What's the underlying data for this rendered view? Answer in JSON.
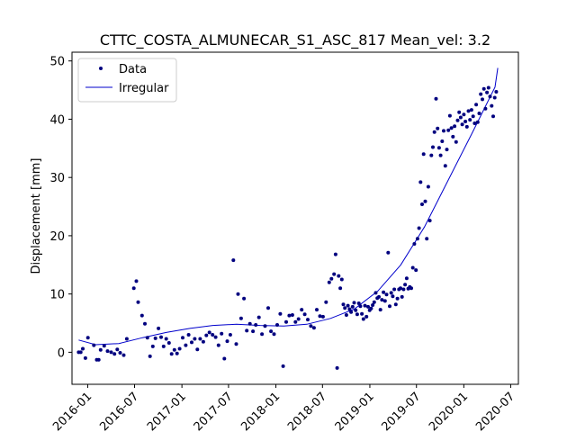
{
  "chart_data": {
    "type": "scatter",
    "title": "CTTC_COSTA_ALMUNECAR_S1_ASC_817     Mean_vel: 3.2",
    "xlabel": "",
    "ylabel": "Displacement [mm]",
    "x_type": "date",
    "xlim": [
      "2015-11-01",
      "2020-07-31"
    ],
    "ylim": [
      -5.5,
      51.5
    ],
    "xticks": [
      "2016-01",
      "2016-07",
      "2017-01",
      "2017-07",
      "2018-01",
      "2018-07",
      "2019-01",
      "2019-07",
      "2020-01",
      "2020-07"
    ],
    "yticks": [
      0,
      10,
      20,
      30,
      40,
      50
    ],
    "grid": false,
    "legend_position": "top-left",
    "colors": {
      "data": "#00007f",
      "fit": "#0000cc"
    },
    "series": [
      {
        "name": "Data",
        "kind": "points",
        "points": [
          [
            "2015-11-27",
            0.0
          ],
          [
            "2015-12-05",
            0.0
          ],
          [
            "2015-12-13",
            0.6
          ],
          [
            "2015-12-23",
            -1.0
          ],
          [
            "2016-01-02",
            2.5
          ],
          [
            "2016-01-25",
            1.2
          ],
          [
            "2016-02-05",
            -1.3
          ],
          [
            "2016-02-13",
            -1.3
          ],
          [
            "2016-02-20",
            0.4
          ],
          [
            "2016-03-05",
            1.1
          ],
          [
            "2016-03-18",
            0.2
          ],
          [
            "2016-04-01",
            0.0
          ],
          [
            "2016-04-14",
            -0.3
          ],
          [
            "2016-04-25",
            0.5
          ],
          [
            "2016-05-06",
            -0.1
          ],
          [
            "2016-05-20",
            -0.5
          ],
          [
            "2016-06-01",
            2.3
          ],
          [
            "2016-06-28",
            11.0
          ],
          [
            "2016-07-08",
            12.2
          ],
          [
            "2016-07-15",
            8.6
          ],
          [
            "2016-07-30",
            6.3
          ],
          [
            "2016-08-10",
            4.9
          ],
          [
            "2016-08-20",
            2.5
          ],
          [
            "2016-08-30",
            -0.7
          ],
          [
            "2016-09-10",
            1.0
          ],
          [
            "2016-09-20",
            2.4
          ],
          [
            "2016-10-02",
            4.1
          ],
          [
            "2016-10-12",
            2.6
          ],
          [
            "2016-10-22",
            1.0
          ],
          [
            "2016-11-01",
            2.3
          ],
          [
            "2016-11-12",
            1.6
          ],
          [
            "2016-11-22",
            -0.3
          ],
          [
            "2016-12-03",
            0.4
          ],
          [
            "2016-12-13",
            -0.2
          ],
          [
            "2016-12-23",
            0.6
          ],
          [
            "2017-01-04",
            2.5
          ],
          [
            "2017-01-16",
            1.2
          ],
          [
            "2017-01-27",
            3.0
          ],
          [
            "2017-02-08",
            1.7
          ],
          [
            "2017-02-20",
            2.3
          ],
          [
            "2017-03-02",
            0.5
          ],
          [
            "2017-03-13",
            2.3
          ],
          [
            "2017-03-25",
            1.8
          ],
          [
            "2017-04-06",
            2.9
          ],
          [
            "2017-04-18",
            3.4
          ],
          [
            "2017-04-30",
            3.0
          ],
          [
            "2017-05-12",
            2.6
          ],
          [
            "2017-05-23",
            1.2
          ],
          [
            "2017-06-04",
            3.2
          ],
          [
            "2017-06-15",
            -1.1
          ],
          [
            "2017-06-26",
            1.9
          ],
          [
            "2017-07-08",
            3.0
          ],
          [
            "2017-07-20",
            15.8
          ],
          [
            "2017-07-31",
            1.4
          ],
          [
            "2017-08-07",
            10.0
          ],
          [
            "2017-08-19",
            5.8
          ],
          [
            "2017-08-30",
            9.2
          ],
          [
            "2017-09-10",
            3.7
          ],
          [
            "2017-09-22",
            4.9
          ],
          [
            "2017-10-04",
            3.6
          ],
          [
            "2017-10-15",
            4.7
          ],
          [
            "2017-10-27",
            6.0
          ],
          [
            "2017-11-08",
            3.1
          ],
          [
            "2017-11-20",
            4.5
          ],
          [
            "2017-12-02",
            7.6
          ],
          [
            "2017-12-13",
            3.6
          ],
          [
            "2017-12-25",
            3.1
          ],
          [
            "2018-01-06",
            4.7
          ],
          [
            "2018-01-18",
            6.6
          ],
          [
            "2018-01-29",
            -2.4
          ],
          [
            "2018-02-10",
            5.2
          ],
          [
            "2018-02-22",
            6.3
          ],
          [
            "2018-03-06",
            6.4
          ],
          [
            "2018-03-18",
            5.2
          ],
          [
            "2018-03-30",
            5.7
          ],
          [
            "2018-04-11",
            7.3
          ],
          [
            "2018-04-23",
            6.5
          ],
          [
            "2018-05-05",
            5.6
          ],
          [
            "2018-05-17",
            4.5
          ],
          [
            "2018-05-29",
            4.2
          ],
          [
            "2018-06-09",
            7.3
          ],
          [
            "2018-06-21",
            6.2
          ],
          [
            "2018-07-03",
            6.1
          ],
          [
            "2018-07-15",
            8.6
          ],
          [
            "2018-07-27",
            12.0
          ],
          [
            "2018-08-05",
            12.6
          ],
          [
            "2018-08-15",
            13.4
          ],
          [
            "2018-08-21",
            16.8
          ],
          [
            "2018-08-27",
            -2.7
          ],
          [
            "2018-09-02",
            13.1
          ],
          [
            "2018-09-08",
            11.0
          ],
          [
            "2018-09-14",
            12.5
          ],
          [
            "2018-09-20",
            8.2
          ],
          [
            "2018-09-26",
            7.6
          ],
          [
            "2018-10-02",
            6.4
          ],
          [
            "2018-10-08",
            8.0
          ],
          [
            "2018-10-14",
            7.4
          ],
          [
            "2018-10-20",
            6.9
          ],
          [
            "2018-10-26",
            7.8
          ],
          [
            "2018-11-01",
            8.5
          ],
          [
            "2018-11-07",
            7.2
          ],
          [
            "2018-11-13",
            6.5
          ],
          [
            "2018-11-19",
            8.4
          ],
          [
            "2018-11-25",
            7.9
          ],
          [
            "2018-12-01",
            6.6
          ],
          [
            "2018-12-07",
            5.7
          ],
          [
            "2018-12-13",
            8.0
          ],
          [
            "2018-12-19",
            6.1
          ],
          [
            "2018-12-25",
            7.8
          ],
          [
            "2018-12-31",
            7.2
          ],
          [
            "2019-01-06",
            7.5
          ],
          [
            "2019-01-12",
            8.1
          ],
          [
            "2019-01-18",
            8.6
          ],
          [
            "2019-01-24",
            10.2
          ],
          [
            "2019-01-30",
            9.3
          ],
          [
            "2019-02-05",
            9.5
          ],
          [
            "2019-02-11",
            7.3
          ],
          [
            "2019-02-17",
            9.0
          ],
          [
            "2019-02-23",
            10.3
          ],
          [
            "2019-03-01",
            8.8
          ],
          [
            "2019-03-07",
            9.9
          ],
          [
            "2019-03-13",
            17.1
          ],
          [
            "2019-03-19",
            7.9
          ],
          [
            "2019-03-25",
            10.2
          ],
          [
            "2019-03-31",
            9.6
          ],
          [
            "2019-04-06",
            10.8
          ],
          [
            "2019-04-12",
            8.2
          ],
          [
            "2019-04-18",
            9.2
          ],
          [
            "2019-04-24",
            10.8
          ],
          [
            "2019-04-30",
            11.0
          ],
          [
            "2019-05-06",
            9.5
          ],
          [
            "2019-05-12",
            10.8
          ],
          [
            "2019-05-18",
            11.6
          ],
          [
            "2019-05-24",
            12.7
          ],
          [
            "2019-05-30",
            10.9
          ],
          [
            "2019-06-05",
            11.2
          ],
          [
            "2019-06-11",
            11.0
          ],
          [
            "2019-06-17",
            14.5
          ],
          [
            "2019-06-23",
            18.6
          ],
          [
            "2019-06-29",
            14.1
          ],
          [
            "2019-07-05",
            19.5
          ],
          [
            "2019-07-11",
            21.3
          ],
          [
            "2019-07-17",
            29.2
          ],
          [
            "2019-07-23",
            25.4
          ],
          [
            "2019-07-29",
            34.0
          ],
          [
            "2019-08-04",
            25.9
          ],
          [
            "2019-08-10",
            19.5
          ],
          [
            "2019-08-16",
            28.4
          ],
          [
            "2019-08-22",
            22.6
          ],
          [
            "2019-08-28",
            33.8
          ],
          [
            "2019-09-03",
            35.2
          ],
          [
            "2019-09-09",
            37.8
          ],
          [
            "2019-09-15",
            43.5
          ],
          [
            "2019-09-21",
            38.4
          ],
          [
            "2019-09-27",
            35.1
          ],
          [
            "2019-10-03",
            33.8
          ],
          [
            "2019-10-09",
            36.2
          ],
          [
            "2019-10-15",
            38.0
          ],
          [
            "2019-10-21",
            32.0
          ],
          [
            "2019-10-27",
            34.8
          ],
          [
            "2019-11-02",
            38.1
          ],
          [
            "2019-11-08",
            40.6
          ],
          [
            "2019-11-14",
            38.5
          ],
          [
            "2019-11-20",
            37.0
          ],
          [
            "2019-11-26",
            38.8
          ],
          [
            "2019-12-02",
            36.1
          ],
          [
            "2019-12-08",
            39.8
          ],
          [
            "2019-12-14",
            41.2
          ],
          [
            "2019-12-20",
            40.3
          ],
          [
            "2019-12-26",
            39.1
          ],
          [
            "2020-01-01",
            40.8
          ],
          [
            "2020-01-07",
            39.6
          ],
          [
            "2020-01-13",
            38.7
          ],
          [
            "2020-01-19",
            41.4
          ],
          [
            "2020-01-25",
            39.9
          ],
          [
            "2020-01-31",
            41.6
          ],
          [
            "2020-02-06",
            40.5
          ],
          [
            "2020-02-12",
            39.3
          ],
          [
            "2020-02-18",
            42.5
          ],
          [
            "2020-02-24",
            39.5
          ],
          [
            "2020-03-01",
            41.0
          ],
          [
            "2020-03-07",
            44.3
          ],
          [
            "2020-03-13",
            43.4
          ],
          [
            "2020-03-19",
            45.2
          ],
          [
            "2020-03-25",
            41.8
          ],
          [
            "2020-03-31",
            44.6
          ],
          [
            "2020-04-06",
            45.4
          ],
          [
            "2020-04-12",
            43.9
          ],
          [
            "2020-04-18",
            42.3
          ],
          [
            "2020-04-24",
            40.5
          ],
          [
            "2020-04-30",
            43.7
          ],
          [
            "2020-05-06",
            44.7
          ]
        ]
      },
      {
        "name": "Irregular",
        "kind": "line",
        "points": [
          [
            "2015-11-27",
            2.1
          ],
          [
            "2016-02-01",
            1.3
          ],
          [
            "2016-05-01",
            1.5
          ],
          [
            "2016-08-01",
            2.5
          ],
          [
            "2016-11-01",
            3.4
          ],
          [
            "2017-02-01",
            4.1
          ],
          [
            "2017-05-01",
            4.6
          ],
          [
            "2017-08-01",
            4.8
          ],
          [
            "2017-11-01",
            4.6
          ],
          [
            "2018-02-01",
            4.5
          ],
          [
            "2018-05-01",
            4.8
          ],
          [
            "2018-08-01",
            5.8
          ],
          [
            "2018-11-01",
            7.4
          ],
          [
            "2019-02-01",
            10.5
          ],
          [
            "2019-05-01",
            15.0
          ],
          [
            "2019-08-01",
            21.5
          ],
          [
            "2019-11-01",
            29.5
          ],
          [
            "2020-02-01",
            37.5
          ],
          [
            "2020-05-01",
            45.5
          ],
          [
            "2020-05-12",
            48.8
          ]
        ]
      }
    ]
  }
}
